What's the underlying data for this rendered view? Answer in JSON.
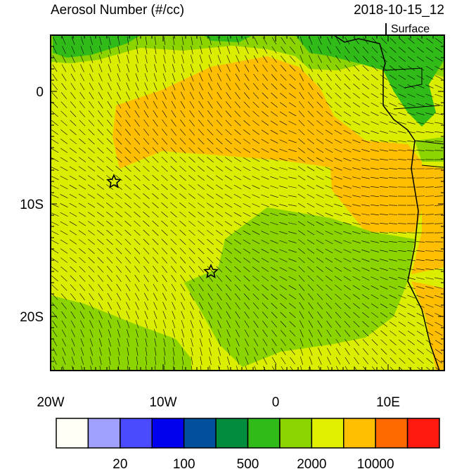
{
  "header": {
    "title": "Aerosol Number (#/cc)",
    "timestamp": "2018-10-15_12",
    "level": "Surface"
  },
  "map": {
    "lat_labels": [
      "0",
      "10S",
      "20S"
    ],
    "lon_labels": [
      "20W",
      "10W",
      "0",
      "10E"
    ]
  },
  "colorbar": {
    "colors": [
      "#fffff5",
      "#a0a0ff",
      "#4a4aff",
      "#0000ee",
      "#00509e",
      "#008c3c",
      "#30bb18",
      "#8cd400",
      "#e0f000",
      "#ffbf00",
      "#ff6a00",
      "#ff1a10"
    ],
    "labels": [
      "20",
      "100",
      "500",
      "2000",
      "10000"
    ]
  }
}
